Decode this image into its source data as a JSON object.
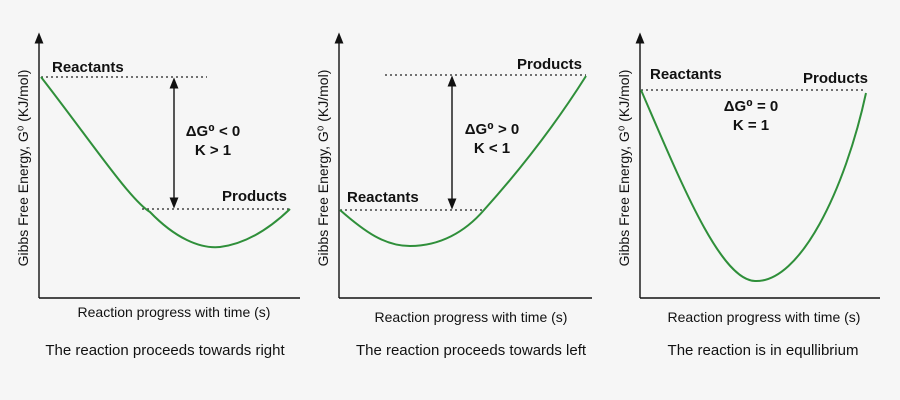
{
  "colors": {
    "curve": "#2f8f3a",
    "axis": "#111111",
    "background": "#f6f6f6"
  },
  "panels": [
    {
      "y_axis_label": "Gibbs Free Energy, G⁰ (KJ/mol)",
      "x_axis_label": "Reaction progress with time (s)",
      "caption": "The reaction proceeds towards right",
      "reactants_label": "Reactants",
      "products_label": "Products",
      "delta_g_label": "ΔG⁰ < 0",
      "k_label": "K > 1"
    },
    {
      "y_axis_label": "Gibbs Free Energy, G⁰ (KJ/mol)",
      "x_axis_label": "Reaction progress with time (s)",
      "caption": "The reaction proceeds towards left",
      "reactants_label": "Reactants",
      "products_label": "Products",
      "delta_g_label": "ΔG⁰ > 0",
      "k_label": "K < 1"
    },
    {
      "y_axis_label": "Gibbs Free Energy, G⁰ (KJ/mol)",
      "x_axis_label": "Reaction progress with time (s)",
      "caption": "The reaction is in equllibrium",
      "reactants_label": "Reactants",
      "products_label": "Products",
      "delta_g_label": "ΔG⁰ = 0",
      "k_label": "K = 1"
    }
  ]
}
